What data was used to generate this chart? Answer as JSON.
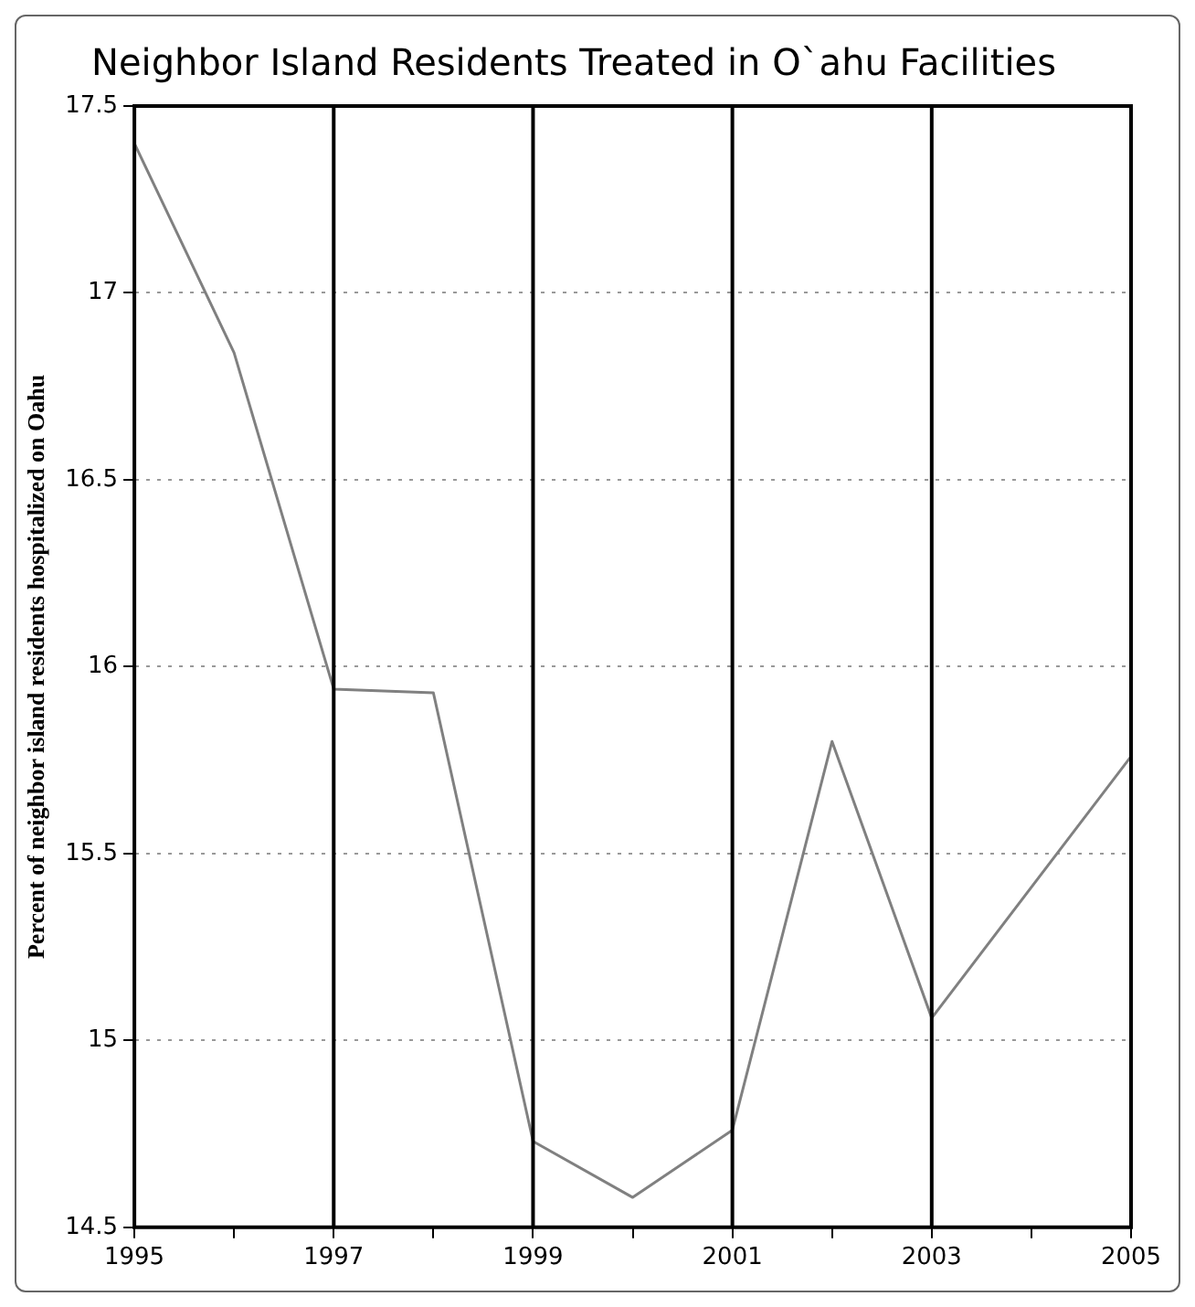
{
  "chart_data": {
    "type": "line",
    "title": "Neighbor Island Residents Treated in O`ahu Facilities",
    "ylabel": "Percent of neighbor island residents hospitalized on Oahu",
    "x": [
      1995,
      1996,
      1997,
      1998,
      1999,
      2000,
      2001,
      2002,
      2003,
      2005
    ],
    "series": [
      {
        "color": "#808080",
        "values": [
          17.4,
          16.84,
          15.94,
          15.93,
          14.73,
          14.58,
          14.76,
          15.8,
          15.06,
          15.76
        ]
      }
    ],
    "xlim": [
      1995,
      2005
    ],
    "xticks": [
      1995,
      {
        "value": 1996,
        "label": null
      },
      1997,
      {
        "value": 1998,
        "label": null
      },
      1999,
      {
        "value": 2000,
        "label": null
      },
      2001,
      {
        "value": 2002,
        "label": null
      },
      2003,
      {
        "value": 2004,
        "label": null
      },
      2005
    ],
    "ylim": [
      14.5,
      17.5
    ],
    "yticks": [
      14.5,
      15,
      15.5,
      16,
      16.5,
      17,
      17.5
    ],
    "ref_lines": [
      {
        "axis": "x",
        "value": 1997,
        "color": "#000000"
      },
      {
        "axis": "x",
        "value": 1999,
        "color": "#000000"
      },
      {
        "axis": "x",
        "value": 2001,
        "color": "#000000"
      },
      {
        "axis": "x",
        "value": 2003,
        "color": "#000000"
      }
    ],
    "grid": "y",
    "legend": false,
    "marker": "none",
    "line_style": "solid"
  }
}
